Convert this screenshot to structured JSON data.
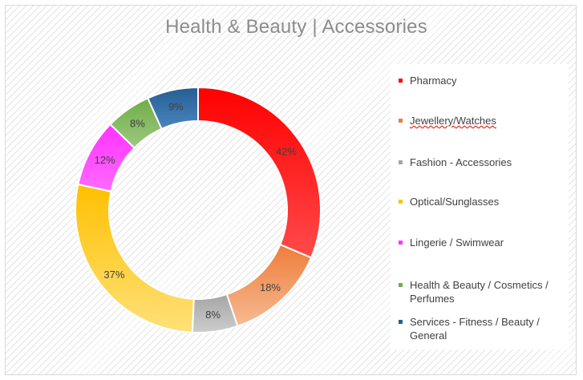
{
  "chart_data": {
    "type": "pie",
    "title": "Health & Beauty | Accessories",
    "donut": true,
    "legend_position": "right",
    "slices": [
      {
        "label": "Pharmacy",
        "value": 42,
        "data_label": "42%",
        "color": "#ff0000",
        "color_light": "#ff4a4a"
      },
      {
        "label": "Jewellery/Watches",
        "value": 18,
        "data_label": "18%",
        "color": "#ee7d3a",
        "color_light": "#f6bb93"
      },
      {
        "label": "Fashion - Accessories",
        "value": 8,
        "data_label": "8%",
        "color": "#a5a5a5",
        "color_light": "#cdcdcd"
      },
      {
        "label": "Optical/Sunglasses",
        "value": 37,
        "data_label": "37%",
        "color": "#ffc000",
        "color_light": "#ffe17a"
      },
      {
        "label": "Lingerie / Swimwear",
        "value": 12,
        "data_label": "12%",
        "color": "#ff33ff",
        "color_light": "#ff6aff"
      },
      {
        "label": "Health & Beauty / Cosmetics / Perfumes",
        "value": 8,
        "data_label": "8%",
        "color": "#70ad47",
        "color_light": "#9cc97f"
      },
      {
        "label": "Services - Fitness / Beauty / General",
        "value": 9,
        "data_label": "9%",
        "color": "#255e91",
        "color_light": "#4a85c0"
      }
    ]
  }
}
